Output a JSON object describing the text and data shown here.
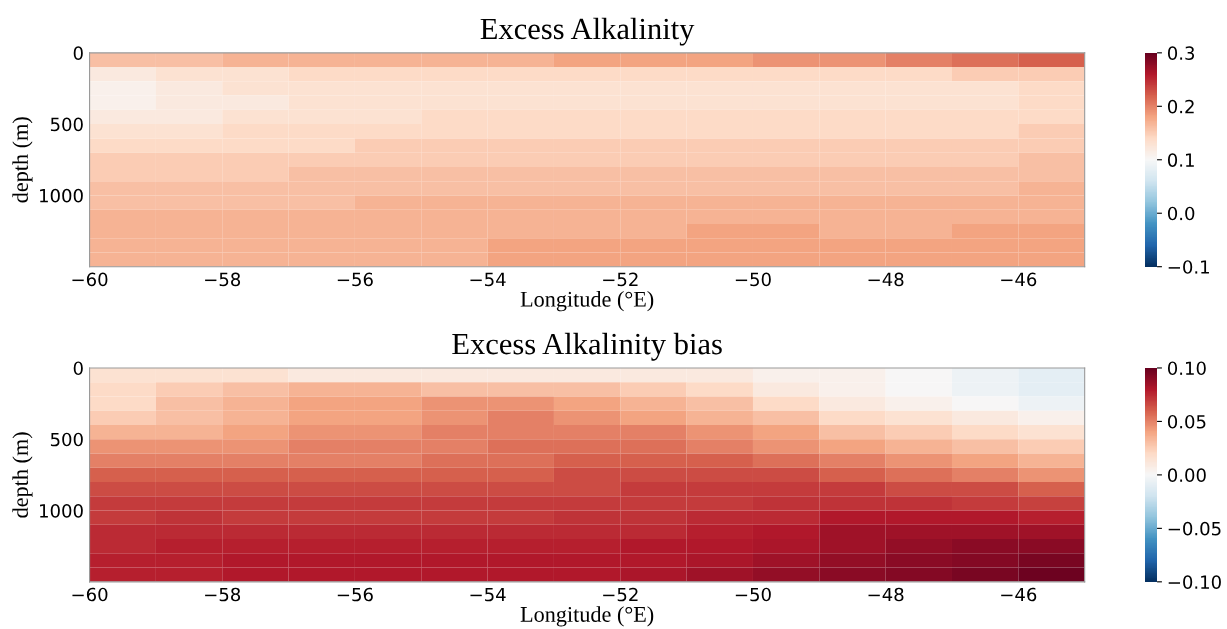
{
  "chart_data": [
    {
      "type": "heatmap",
      "title": "Excess Alkalinity",
      "xlabel": "Longitude (°E)",
      "ylabel": "depth (m)",
      "x": [
        -59.5,
        -58.5,
        -57.5,
        -56.5,
        -55.5,
        -54.5,
        -53.5,
        -52.5,
        -51.5,
        -50.5,
        -49.5,
        -48.5,
        -47.5,
        -46.5,
        -45.5
      ],
      "cells": [
        [
          0.16,
          0.16,
          0.17,
          0.17,
          0.17,
          0.17,
          0.17,
          0.18,
          0.18,
          0.18,
          0.19,
          0.19,
          0.2,
          0.21,
          0.22
        ],
        [
          0.12,
          0.13,
          0.13,
          0.14,
          0.14,
          0.14,
          0.14,
          0.14,
          0.14,
          0.14,
          0.14,
          0.14,
          0.14,
          0.15,
          0.15
        ],
        [
          0.11,
          0.12,
          0.13,
          0.13,
          0.13,
          0.13,
          0.13,
          0.13,
          0.13,
          0.13,
          0.13,
          0.13,
          0.13,
          0.13,
          0.14
        ],
        [
          0.11,
          0.12,
          0.12,
          0.13,
          0.13,
          0.13,
          0.13,
          0.13,
          0.13,
          0.13,
          0.13,
          0.13,
          0.13,
          0.13,
          0.14
        ],
        [
          0.12,
          0.12,
          0.13,
          0.13,
          0.13,
          0.14,
          0.14,
          0.14,
          0.14,
          0.14,
          0.14,
          0.14,
          0.14,
          0.14,
          0.14
        ],
        [
          0.13,
          0.13,
          0.14,
          0.14,
          0.14,
          0.14,
          0.14,
          0.14,
          0.14,
          0.14,
          0.14,
          0.14,
          0.14,
          0.14,
          0.15
        ],
        [
          0.14,
          0.14,
          0.14,
          0.14,
          0.15,
          0.15,
          0.15,
          0.15,
          0.15,
          0.15,
          0.15,
          0.15,
          0.15,
          0.15,
          0.15
        ],
        [
          0.15,
          0.15,
          0.15,
          0.15,
          0.15,
          0.15,
          0.15,
          0.15,
          0.15,
          0.15,
          0.15,
          0.15,
          0.15,
          0.15,
          0.16
        ],
        [
          0.15,
          0.15,
          0.15,
          0.16,
          0.16,
          0.16,
          0.16,
          0.16,
          0.16,
          0.16,
          0.16,
          0.16,
          0.16,
          0.16,
          0.16
        ],
        [
          0.16,
          0.16,
          0.16,
          0.16,
          0.16,
          0.16,
          0.16,
          0.16,
          0.16,
          0.16,
          0.16,
          0.16,
          0.16,
          0.16,
          0.17
        ],
        [
          0.16,
          0.16,
          0.16,
          0.16,
          0.17,
          0.17,
          0.17,
          0.17,
          0.17,
          0.17,
          0.17,
          0.17,
          0.17,
          0.17,
          0.17
        ],
        [
          0.17,
          0.17,
          0.17,
          0.17,
          0.17,
          0.17,
          0.17,
          0.17,
          0.17,
          0.17,
          0.17,
          0.17,
          0.17,
          0.17,
          0.17
        ],
        [
          0.17,
          0.17,
          0.17,
          0.17,
          0.17,
          0.17,
          0.17,
          0.17,
          0.17,
          0.18,
          0.18,
          0.17,
          0.17,
          0.18,
          0.18
        ],
        [
          0.17,
          0.17,
          0.17,
          0.17,
          0.17,
          0.17,
          0.18,
          0.18,
          0.18,
          0.18,
          0.18,
          0.18,
          0.18,
          0.18,
          0.18
        ],
        [
          0.17,
          0.17,
          0.17,
          0.17,
          0.17,
          0.17,
          0.18,
          0.18,
          0.18,
          0.18,
          0.18,
          0.18,
          0.18,
          0.18,
          0.18
        ]
      ],
      "xlim": [
        -60,
        -45
      ],
      "xticks": [
        {
          "value": -60,
          "label": "−60"
        },
        {
          "value": -58,
          "label": "−58"
        },
        {
          "value": -56,
          "label": "−56"
        },
        {
          "value": -54,
          "label": "−54"
        },
        {
          "value": -52,
          "label": "−52"
        },
        {
          "value": -50,
          "label": "−50"
        },
        {
          "value": -48,
          "label": "−48"
        },
        {
          "value": -46,
          "label": "−46"
        }
      ],
      "ylim": [
        1500,
        0
      ],
      "yticks": [
        0,
        500,
        1000
      ],
      "clim": [
        -0.1,
        0.3
      ],
      "cticks": [
        {
          "value": -0.1,
          "label": "−0.1"
        },
        {
          "value": 0.0,
          "label": "0.0"
        },
        {
          "value": 0.1,
          "label": "0.1"
        },
        {
          "value": 0.2,
          "label": "0.2"
        },
        {
          "value": 0.3,
          "label": "0.3"
        }
      ]
    },
    {
      "type": "heatmap",
      "title": "Excess Alkalinity bias",
      "xlabel": "Longitude (°E)",
      "ylabel": "depth (m)",
      "x": [
        -59.5,
        -58.5,
        -57.5,
        -56.5,
        -55.5,
        -54.5,
        -53.5,
        -52.5,
        -51.5,
        -50.5,
        -49.5,
        -48.5,
        -47.5,
        -46.5,
        -45.5
      ],
      "cells": [
        [
          0.015,
          0.015,
          0.015,
          0.01,
          0.01,
          0.01,
          0.01,
          0.01,
          0.01,
          0.01,
          0.005,
          0.005,
          0.0,
          -0.005,
          -0.01
        ],
        [
          0.02,
          0.025,
          0.03,
          0.035,
          0.035,
          0.03,
          0.03,
          0.03,
          0.025,
          0.02,
          0.01,
          0.005,
          0.0,
          -0.005,
          -0.01
        ],
        [
          0.02,
          0.03,
          0.035,
          0.04,
          0.04,
          0.045,
          0.045,
          0.04,
          0.035,
          0.03,
          0.02,
          0.01,
          0.005,
          0.0,
          -0.005
        ],
        [
          0.025,
          0.03,
          0.035,
          0.04,
          0.04,
          0.045,
          0.05,
          0.045,
          0.04,
          0.035,
          0.03,
          0.02,
          0.015,
          0.01,
          0.005
        ],
        [
          0.035,
          0.035,
          0.04,
          0.045,
          0.045,
          0.05,
          0.05,
          0.05,
          0.05,
          0.045,
          0.04,
          0.03,
          0.025,
          0.02,
          0.015
        ],
        [
          0.045,
          0.045,
          0.045,
          0.05,
          0.05,
          0.05,
          0.055,
          0.055,
          0.055,
          0.05,
          0.045,
          0.04,
          0.035,
          0.03,
          0.025
        ],
        [
          0.05,
          0.05,
          0.05,
          0.05,
          0.05,
          0.055,
          0.055,
          0.06,
          0.06,
          0.06,
          0.055,
          0.05,
          0.045,
          0.04,
          0.035
        ],
        [
          0.06,
          0.06,
          0.06,
          0.06,
          0.06,
          0.06,
          0.06,
          0.065,
          0.065,
          0.065,
          0.065,
          0.06,
          0.055,
          0.05,
          0.045
        ],
        [
          0.065,
          0.065,
          0.065,
          0.065,
          0.065,
          0.065,
          0.065,
          0.065,
          0.07,
          0.07,
          0.07,
          0.07,
          0.065,
          0.065,
          0.06
        ],
        [
          0.07,
          0.07,
          0.07,
          0.07,
          0.07,
          0.07,
          0.07,
          0.07,
          0.07,
          0.07,
          0.072,
          0.072,
          0.072,
          0.07,
          0.068
        ],
        [
          0.07,
          0.072,
          0.07,
          0.07,
          0.07,
          0.07,
          0.07,
          0.072,
          0.072,
          0.075,
          0.075,
          0.08,
          0.08,
          0.08,
          0.078
        ],
        [
          0.075,
          0.075,
          0.075,
          0.075,
          0.075,
          0.075,
          0.075,
          0.075,
          0.075,
          0.078,
          0.08,
          0.085,
          0.085,
          0.085,
          0.085
        ],
        [
          0.075,
          0.078,
          0.078,
          0.078,
          0.078,
          0.078,
          0.078,
          0.078,
          0.08,
          0.08,
          0.082,
          0.085,
          0.088,
          0.09,
          0.09
        ],
        [
          0.078,
          0.078,
          0.08,
          0.08,
          0.08,
          0.08,
          0.08,
          0.08,
          0.08,
          0.082,
          0.085,
          0.088,
          0.09,
          0.092,
          0.095
        ],
        [
          0.078,
          0.078,
          0.08,
          0.08,
          0.08,
          0.08,
          0.08,
          0.08,
          0.082,
          0.085,
          0.088,
          0.09,
          0.092,
          0.095,
          0.098
        ]
      ],
      "xlim": [
        -60,
        -45
      ],
      "xticks": [
        {
          "value": -60,
          "label": "−60"
        },
        {
          "value": -58,
          "label": "−58"
        },
        {
          "value": -56,
          "label": "−56"
        },
        {
          "value": -54,
          "label": "−54"
        },
        {
          "value": -52,
          "label": "−52"
        },
        {
          "value": -50,
          "label": "−50"
        },
        {
          "value": -48,
          "label": "−48"
        },
        {
          "value": -46,
          "label": "−46"
        }
      ],
      "ylim": [
        1500,
        0
      ],
      "yticks": [
        0,
        500,
        1000
      ],
      "clim": [
        -0.1,
        0.1
      ],
      "cticks": [
        {
          "value": -0.1,
          "label": "−0.10"
        },
        {
          "value": -0.05,
          "label": "−0.05"
        },
        {
          "value": 0.0,
          "label": "0.00"
        },
        {
          "value": 0.05,
          "label": "0.05"
        },
        {
          "value": 0.1,
          "label": "0.10"
        }
      ]
    }
  ]
}
